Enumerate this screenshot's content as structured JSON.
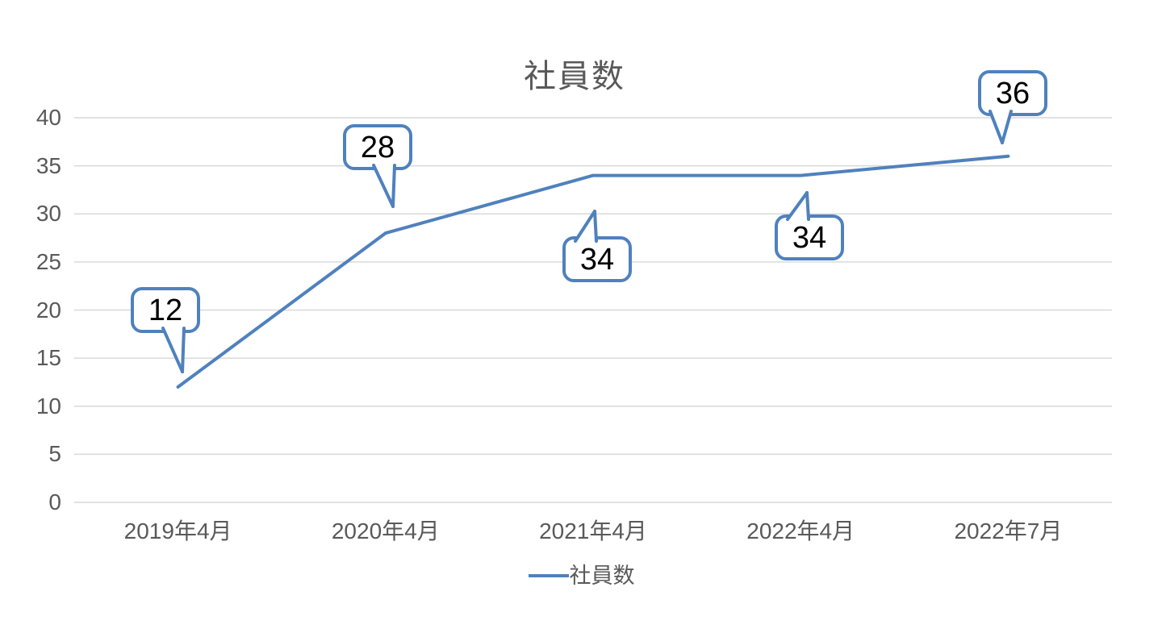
{
  "chart_data": {
    "type": "line",
    "title": "社員数",
    "categories": [
      "2019年4月",
      "2020年4月",
      "2021年4月",
      "2022年4月",
      "2022年7月"
    ],
    "series": [
      {
        "name": "社員数",
        "values": [
          12,
          28,
          34,
          34,
          36
        ]
      }
    ],
    "data_labels": [
      "12",
      "28",
      "34",
      "34",
      "36"
    ],
    "yticks": [
      0,
      5,
      10,
      15,
      20,
      25,
      30,
      35,
      40
    ],
    "ylim": [
      0,
      40
    ],
    "grid": "horizontal-only",
    "legend_position": "bottom",
    "legend_label": "社員数",
    "colors": {
      "series": "#4f81bd",
      "gridline": "#d9d9d9",
      "axis_text": "#595959",
      "title_text": "#595959",
      "callout_border": "#4f81bd",
      "callout_fill": "#ffffff",
      "callout_text": "#000000",
      "background": "#ffffff"
    }
  }
}
